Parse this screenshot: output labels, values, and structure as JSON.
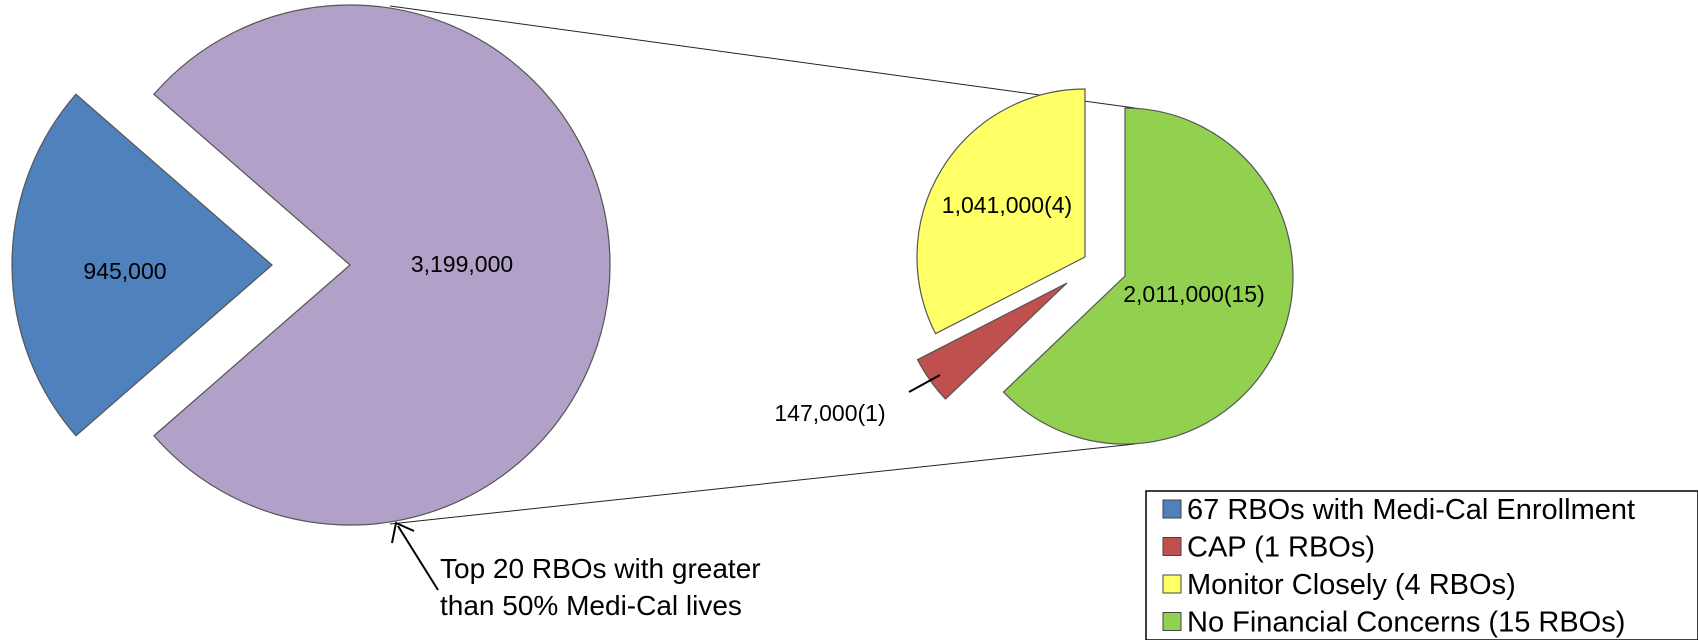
{
  "chart_data": {
    "type": "pie",
    "subtype": "pie-of-pie",
    "main_pie": {
      "slices": [
        {
          "key": "rbo67",
          "label": "945,000",
          "value": 945000
        },
        {
          "key": "top20",
          "label": "3,199,000",
          "value": 3199000
        }
      ]
    },
    "secondary_pie": {
      "slices": [
        {
          "key": "nofin",
          "label": "2,011,000(15)",
          "value": 2011000
        },
        {
          "key": "cap",
          "label": "147,000(1)",
          "value": 147000
        },
        {
          "key": "monitor",
          "label": "1,041,000(4)",
          "value": 1041000
        }
      ]
    },
    "annotation": {
      "line1": "Top 20 RBOs with greater",
      "line2": "than 50% Medi-Cal lives"
    },
    "legend": {
      "position": "bottom-right",
      "entries": [
        {
          "key": "rbo67",
          "label": "67 RBOs with Medi-Cal Enrollment",
          "color": "#4f81bd"
        },
        {
          "key": "cap",
          "label": "CAP (1 RBOs)",
          "color": "#c0504d"
        },
        {
          "key": "monitor",
          "label": "Monitor Closely (4 RBOs)",
          "color": "#ffff66"
        },
        {
          "key": "nofin",
          "label": "No Financial Concerns (15 RBOs)",
          "color": "#92d050"
        }
      ]
    },
    "colors": {
      "rbo67": "#4f81bd",
      "top20": "#b1a0c7",
      "cap": "#c0504d",
      "monitor": "#ffff66",
      "nofin": "#92d050"
    }
  }
}
